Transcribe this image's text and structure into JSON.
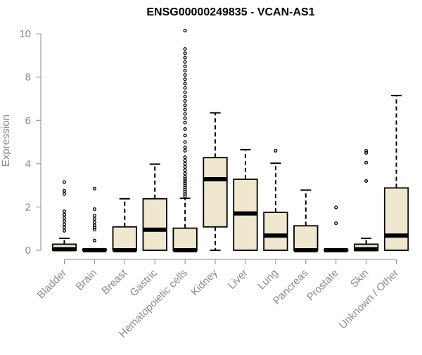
{
  "chart_data": {
    "type": "boxplot",
    "title": "ENSG00000249835 - VCAN-AS1",
    "xlabel": "",
    "ylabel": "Expression",
    "ylim": [
      0,
      10.2
    ],
    "yticks": [
      0,
      2,
      4,
      6,
      8,
      10
    ],
    "box_fill": "#efe8cf",
    "categories": [
      "Bladder",
      "Brain",
      "Breast",
      "Gastric",
      "Hematopoietic cells",
      "Kidney",
      "Liver",
      "Lung",
      "Pancreas",
      "Prostate",
      "Skin",
      "Unknown / Other"
    ],
    "boxes": [
      {
        "category": "Bladder",
        "whisker_low": 0,
        "q1": 0,
        "median": 0.05,
        "q3": 0.28,
        "whisker_high": 0.55,
        "outliers": [
          0.9,
          1.05,
          1.2,
          1.35,
          1.5,
          1.65,
          1.8,
          2.6,
          2.75,
          3.15
        ]
      },
      {
        "category": "Brain",
        "whisker_low": 0,
        "q1": 0,
        "median": 0,
        "q3": 0.05,
        "whisker_high": 0.05,
        "outliers": [
          0.45,
          0.95,
          1.05,
          1.15,
          1.3,
          1.45,
          1.6,
          1.9,
          2.85
        ]
      },
      {
        "category": "Breast",
        "whisker_low": 0,
        "q1": 0,
        "median": 0,
        "q3": 1.08,
        "whisker_high": 2.38,
        "outliers": []
      },
      {
        "category": "Gastric",
        "whisker_low": 0,
        "q1": 0,
        "median": 0.95,
        "q3": 2.38,
        "whisker_high": 3.98,
        "outliers": []
      },
      {
        "category": "Hematopoietic cells",
        "whisker_low": 0,
        "q1": 0,
        "median": 0,
        "q3": 1.02,
        "whisker_high": 2.4,
        "outliers": [
          2.5,
          2.6,
          2.7,
          2.8,
          2.9,
          3.0,
          3.1,
          3.2,
          3.3,
          3.4,
          3.55,
          3.7,
          3.85,
          4.0,
          4.15,
          4.3,
          4.6,
          4.75,
          5.0,
          5.3,
          5.6,
          5.9,
          6.1,
          6.3,
          6.5,
          6.7,
          6.9,
          7.1,
          7.3,
          7.5,
          7.7,
          7.9,
          8.1,
          8.3,
          8.5,
          8.7,
          8.9,
          9.1,
          9.3,
          10.15
        ]
      },
      {
        "category": "Kidney",
        "whisker_low": 0,
        "q1": 1.08,
        "median": 3.28,
        "q3": 4.28,
        "whisker_high": 6.35,
        "outliers": []
      },
      {
        "category": "Liver",
        "whisker_low": 0,
        "q1": 0,
        "median": 1.7,
        "q3": 3.28,
        "whisker_high": 4.65,
        "outliers": []
      },
      {
        "category": "Lung",
        "whisker_low": 0,
        "q1": 0,
        "median": 0.68,
        "q3": 1.75,
        "whisker_high": 4.02,
        "outliers": [
          4.6
        ]
      },
      {
        "category": "Pancreas",
        "whisker_low": 0,
        "q1": 0,
        "median": 0,
        "q3": 1.13,
        "whisker_high": 2.78,
        "outliers": []
      },
      {
        "category": "Prostate",
        "whisker_low": 0,
        "q1": 0,
        "median": 0,
        "q3": 0.02,
        "whisker_high": 0.02,
        "outliers": [
          1.25,
          1.98
        ]
      },
      {
        "category": "Skin",
        "whisker_low": 0,
        "q1": 0,
        "median": 0.05,
        "q3": 0.28,
        "whisker_high": 0.55,
        "outliers": [
          3.2,
          4.05,
          4.5,
          4.6
        ]
      },
      {
        "category": "Unknown / Other",
        "whisker_low": 0,
        "q1": 0,
        "median": 0.68,
        "q3": 2.88,
        "whisker_high": 7.15,
        "outliers": []
      }
    ]
  }
}
